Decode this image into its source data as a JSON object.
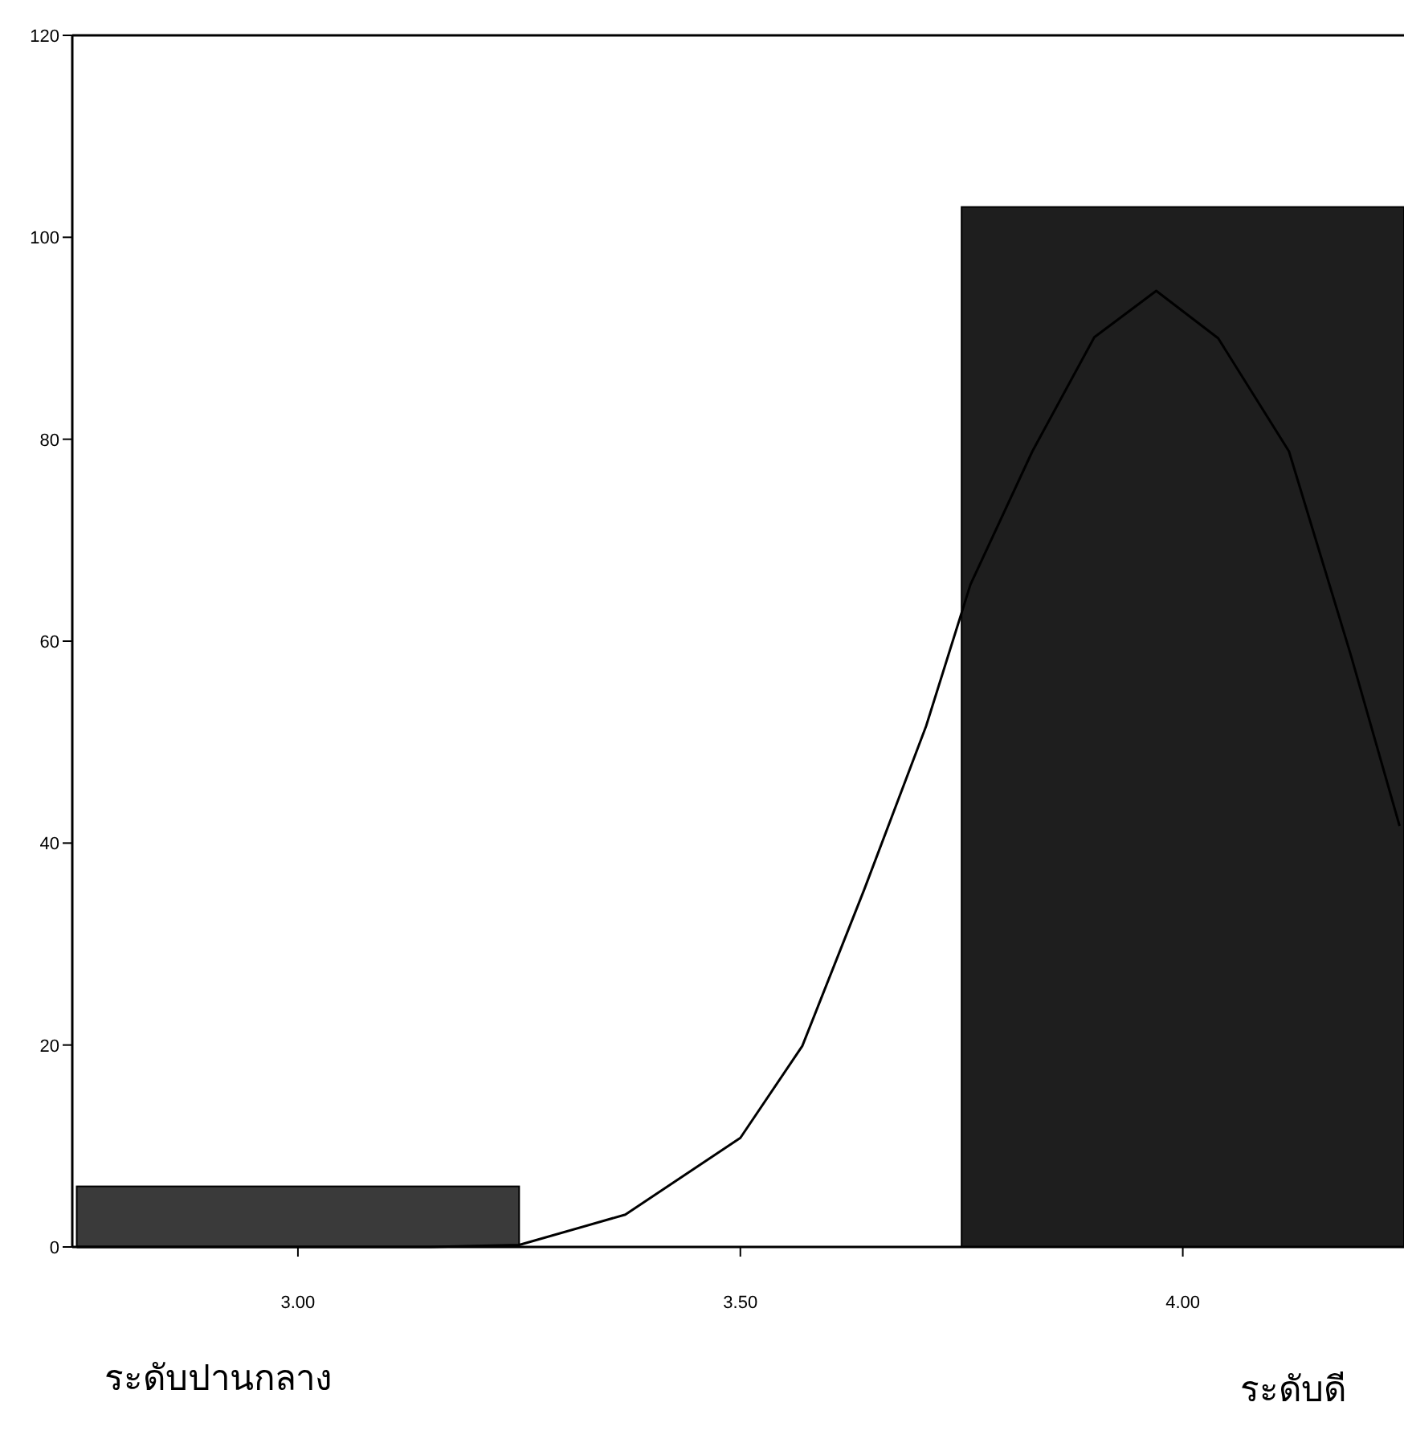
{
  "chart_data": {
    "type": "histogram",
    "bins": [
      2.75,
      3.25,
      3.75,
      4.25
    ],
    "values": [
      6,
      0,
      103
    ],
    "colors": [
      "#3a3a3a",
      "#222222",
      "#1e1e1e"
    ],
    "series": [
      {
        "type": "line",
        "color": "#000000",
        "x": [
          2.75,
          3.15,
          3.25,
          3.37,
          3.5,
          3.57,
          3.64,
          3.71,
          3.76,
          3.83,
          3.9,
          3.97,
          4.04,
          4.12,
          4.19,
          4.245
        ],
        "values": [
          0,
          0,
          0.2,
          3.2,
          10.8,
          19.9,
          35.4,
          51.6,
          65.6,
          78.8,
          90.1,
          94.7,
          90,
          78.8,
          58.6,
          41.7
        ]
      }
    ],
    "xlim": [
      2.745,
      4.25
    ],
    "ylim": [
      0,
      120
    ],
    "xticks": [
      {
        "value": 3,
        "label": "3.00"
      },
      {
        "value": 3.5,
        "label": "3.50"
      },
      {
        "value": 4,
        "label": "4.00"
      }
    ],
    "yticks": [
      0,
      20,
      40,
      60,
      80,
      100,
      120
    ],
    "annotations": [
      "ระดับปานกลาง",
      "ระดับดี"
    ],
    "grid": false
  }
}
